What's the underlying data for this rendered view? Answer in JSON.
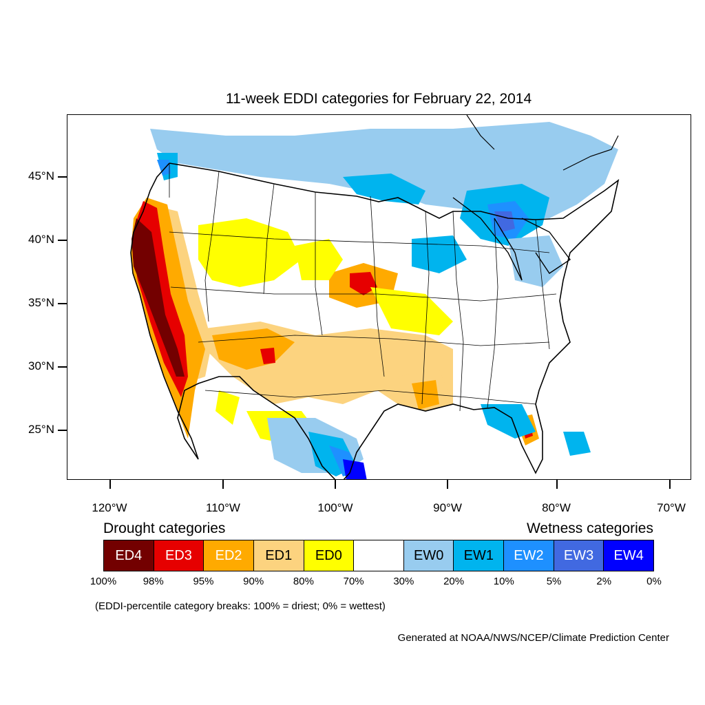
{
  "title": "11-week EDDI categories for February 22, 2014",
  "lat_labels": [
    "45°N",
    "40°N",
    "35°N",
    "30°N",
    "25°N"
  ],
  "lon_labels": [
    "120°W",
    "110°W",
    "100°W",
    "90°W",
    "80°W",
    "70°W"
  ],
  "legend": {
    "drought_title": "Drought categories",
    "wetness_title": "Wetness categories",
    "categories": [
      {
        "label": "ED4",
        "color": "#730000",
        "text_color": "#ffffff"
      },
      {
        "label": "ED3",
        "color": "#e60000",
        "text_color": "#ffffff"
      },
      {
        "label": "ED2",
        "color": "#ffaa00",
        "text_color": "#ffffff"
      },
      {
        "label": "ED1",
        "color": "#fcd37f",
        "text_color": "#000000"
      },
      {
        "label": "ED0",
        "color": "#ffff00",
        "text_color": "#000000"
      },
      {
        "label": "",
        "color": "#ffffff",
        "text_color": "#000000"
      },
      {
        "label": "EW0",
        "color": "#98ccef",
        "text_color": "#000000"
      },
      {
        "label": "EW1",
        "color": "#00b4ee",
        "text_color": "#000000"
      },
      {
        "label": "EW2",
        "color": "#1e90ff",
        "text_color": "#ffffff"
      },
      {
        "label": "EW3",
        "color": "#4169e1",
        "text_color": "#ffffff"
      },
      {
        "label": "EW4",
        "color": "#0000ff",
        "text_color": "#ffffff"
      }
    ],
    "breaks": [
      "100%",
      "98%",
      "95%",
      "90%",
      "80%",
      "70%",
      "30%",
      "20%",
      "10%",
      "5%",
      "2%",
      "0%"
    ]
  },
  "note": "(EDDI-percentile category breaks: 100% = driest; 0% = wettest)",
  "credit": "Generated at NOAA/NWS/NCEP/Climate Prediction Center"
}
